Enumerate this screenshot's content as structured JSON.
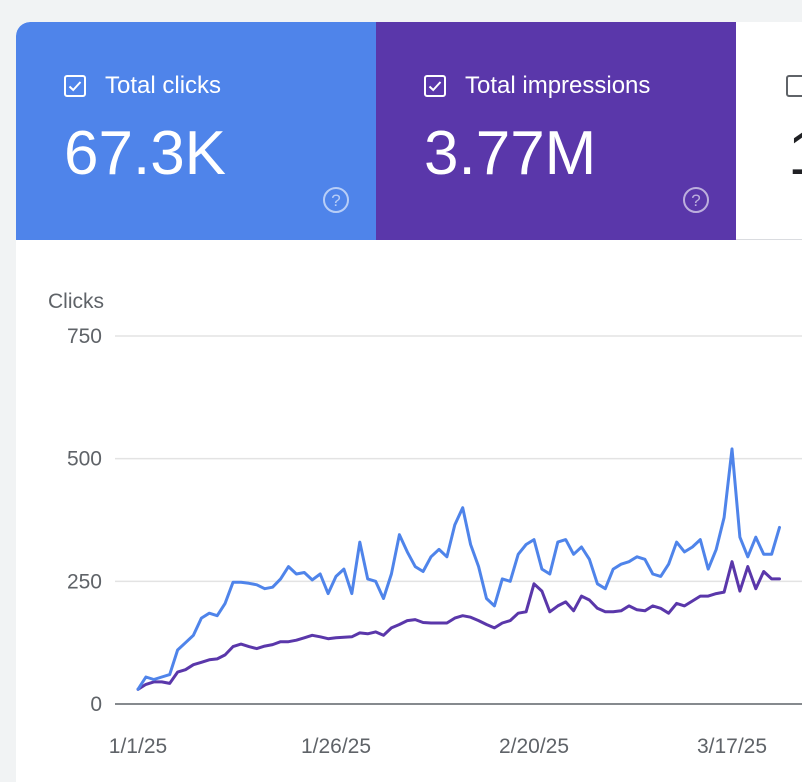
{
  "cards": [
    {
      "label": "Total clicks",
      "value": "67.3K",
      "checked": true,
      "color": "#4f84ea"
    },
    {
      "label": "Total impressions",
      "value": "3.77M",
      "checked": true,
      "color": "#5a37aa"
    },
    {
      "label": "",
      "value": "1",
      "checked": false,
      "color": "#ffffff"
    }
  ],
  "chart_data": {
    "type": "line",
    "ylabel": "Clicks",
    "ylim": [
      0,
      750
    ],
    "yticks": [
      0,
      250,
      500,
      750
    ],
    "xticks": [
      "1/1/25",
      "1/26/25",
      "2/20/25",
      "3/17/25"
    ],
    "x_index_of_ticks": [
      0,
      25,
      50,
      75
    ],
    "series": [
      {
        "name": "Total clicks",
        "color": "#4f84ea",
        "values": [
          30,
          55,
          50,
          55,
          60,
          110,
          125,
          140,
          175,
          185,
          180,
          205,
          248,
          248,
          246,
          243,
          235,
          238,
          255,
          280,
          265,
          268,
          253,
          265,
          225,
          260,
          275,
          225,
          330,
          255,
          250,
          215,
          265,
          345,
          310,
          280,
          270,
          300,
          315,
          300,
          365,
          400,
          325,
          280,
          215,
          200,
          255,
          250,
          305,
          325,
          335,
          275,
          265,
          330,
          335,
          305,
          320,
          295,
          245,
          235,
          275,
          285,
          290,
          300,
          295,
          265,
          260,
          285,
          330,
          310,
          320,
          335,
          275,
          315,
          380,
          520,
          340,
          300,
          340,
          305,
          305,
          360
        ]
      },
      {
        "name": "Total impressions",
        "color": "#5a37aa",
        "values": [
          30,
          40,
          45,
          45,
          42,
          65,
          70,
          80,
          85,
          90,
          92,
          100,
          117,
          122,
          117,
          113,
          118,
          121,
          127,
          127,
          130,
          135,
          140,
          137,
          133,
          135,
          136,
          137,
          145,
          143,
          147,
          140,
          155,
          162,
          170,
          172,
          166,
          165,
          165,
          165,
          175,
          180,
          177,
          170,
          162,
          155,
          165,
          170,
          185,
          188,
          245,
          230,
          188,
          200,
          208,
          190,
          220,
          212,
          195,
          188,
          188,
          190,
          200,
          192,
          190,
          200,
          195,
          185,
          205,
          200,
          210,
          220,
          220,
          225,
          228,
          290,
          230,
          280,
          235,
          270,
          255,
          255
        ]
      }
    ]
  }
}
